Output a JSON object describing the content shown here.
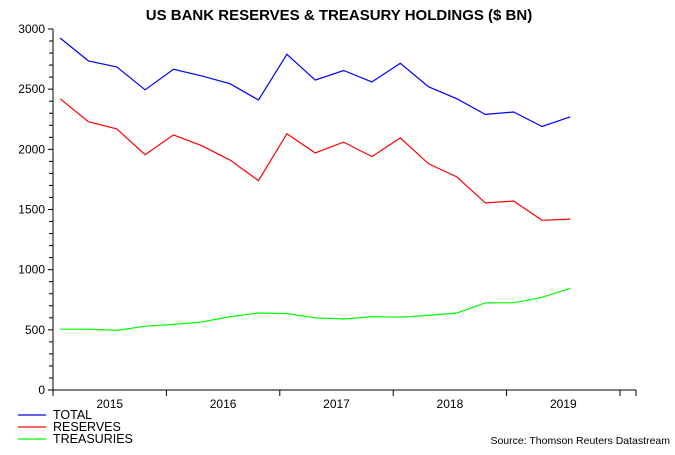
{
  "chart_data": {
    "type": "line",
    "title": "US BANK RESERVES & TREASURY HOLDINGS ($ BN)",
    "xlabel": "",
    "ylabel": "",
    "ylim": [
      0,
      3000
    ],
    "yticks": [
      0,
      500,
      1000,
      1500,
      2000,
      2500,
      3000
    ],
    "xticks": [
      "2015",
      "2016",
      "2017",
      "2018",
      "2019"
    ],
    "x": [
      "2015Q1",
      "2015Q2",
      "2015Q3",
      "2015Q4",
      "2016Q1",
      "2016Q2",
      "2016Q3",
      "2016Q4",
      "2017Q1",
      "2017Q2",
      "2017Q3",
      "2017Q4",
      "2018Q1",
      "2018Q2",
      "2018Q3",
      "2018Q4",
      "2019Q1",
      "2019Q2",
      "2019Q3"
    ],
    "grid": false,
    "legend": "bottom-left",
    "series": [
      {
        "name": "TOTAL",
        "color": "#0000ff",
        "values": [
          2925,
          2735,
          2685,
          2495,
          2665,
          2610,
          2545,
          2410,
          2790,
          2575,
          2655,
          2560,
          2715,
          2520,
          2420,
          2290,
          2310,
          2190,
          2270
        ]
      },
      {
        "name": "RESERVES",
        "color": "#ff0000",
        "values": [
          2420,
          2230,
          2170,
          1955,
          2120,
          2030,
          1910,
          1740,
          2130,
          1970,
          2060,
          1940,
          2095,
          1880,
          1770,
          1555,
          1570,
          1410,
          1420
        ]
      },
      {
        "name": "TREASURIES",
        "color": "#00ff00",
        "values": [
          505,
          505,
          495,
          530,
          545,
          565,
          610,
          640,
          635,
          600,
          590,
          610,
          605,
          620,
          640,
          725,
          725,
          770,
          845
        ]
      }
    ],
    "source": "Source: Thomson Reuters Datastream"
  }
}
